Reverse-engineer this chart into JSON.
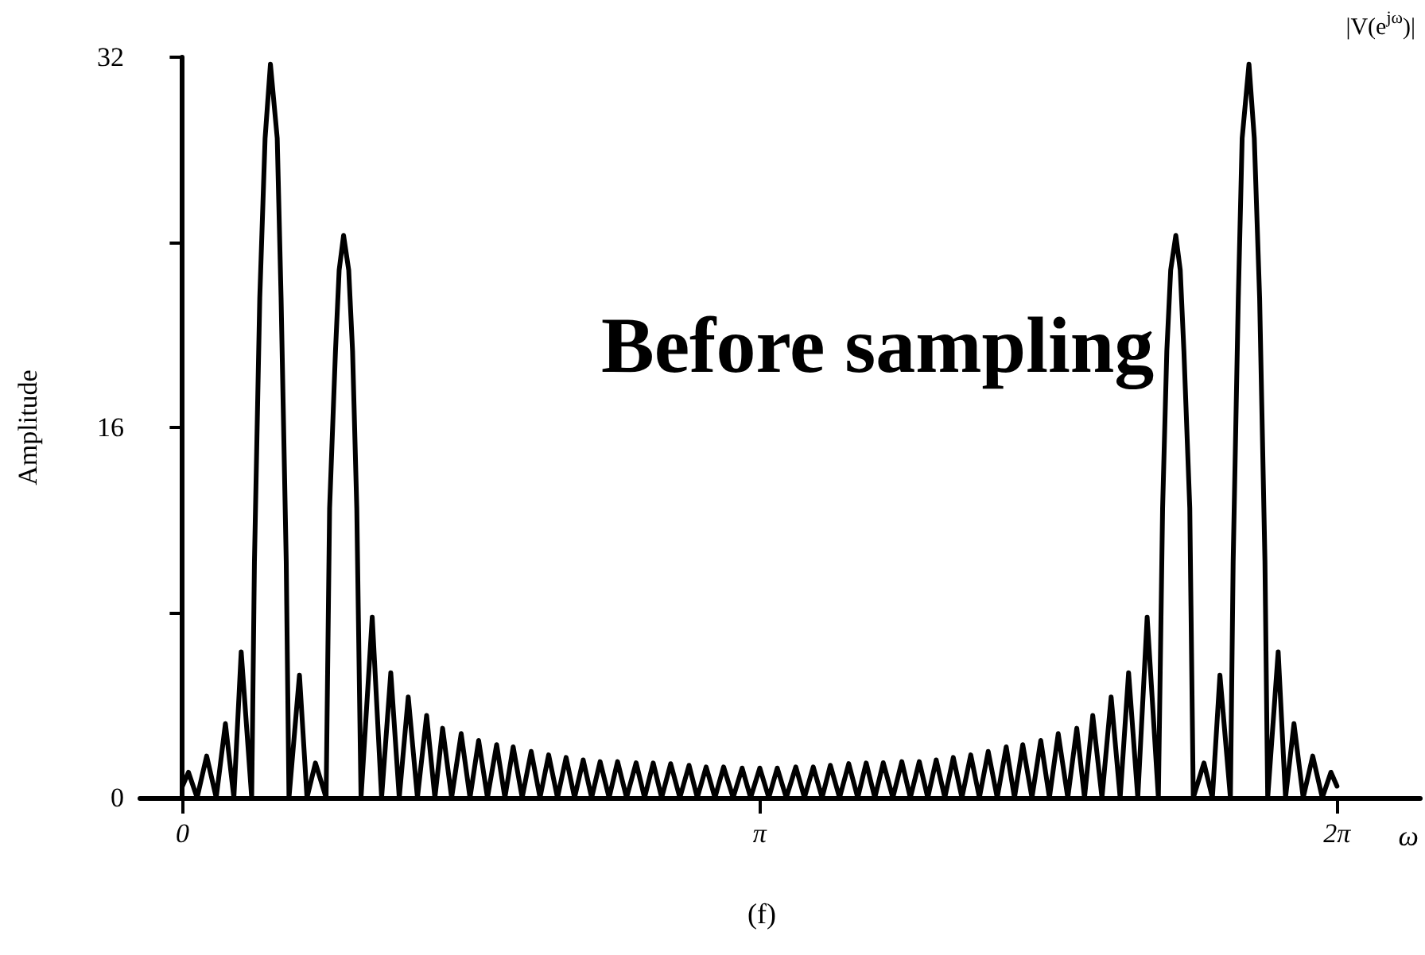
{
  "chart_data": {
    "type": "line",
    "xlabel": "ω",
    "ylabel": "Amplitude",
    "annotations": [
      "|V(e$^{jω}$)|",
      "Before sampling",
      "(f)"
    ],
    "xlim": [
      -0.231,
      6.736
    ],
    "ylim": [
      0,
      32
    ],
    "xticks": [
      0,
      {
        "value": 3.1416,
        "label": "π"
      },
      {
        "value": 6.2832,
        "label": "2π"
      }
    ],
    "yticks": [
      0,
      {
        "value": 8,
        "label": null
      },
      16,
      {
        "value": 24,
        "label": null
      },
      32
    ],
    "grid": false,
    "marker": "none",
    "line_style": "solid",
    "x": [
      0,
      0.033,
      0.08,
      0.132,
      0.184,
      0.234,
      0.28,
      0.32,
      0.377,
      0.392,
      0.421,
      0.45,
      0.479,
      0.516,
      0.537,
      0.565,
      0.58,
      0.637,
      0.678,
      0.724,
      0.782,
      0.801,
      0.833,
      0.853,
      0.877,
      0.905,
      0.926,
      0.949,
      0.972,
      1.033,
      1.084,
      1.134,
      1.18,
      1.229,
      1.279,
      1.329,
      1.374,
      1.416,
      1.465,
      1.517,
      1.565,
      1.612,
      1.66,
      1.71,
      1.755,
      1.8,
      1.849,
      1.898,
      1.946,
      1.993,
      2.041,
      2.088,
      2.134,
      2.181,
      2.227,
      2.273,
      2.322,
      2.368,
      2.417,
      2.469,
      2.515,
      2.562,
      2.608,
      2.657,
      2.707,
      2.757,
      2.802,
      2.85,
      2.898,
      2.945,
      2.997,
      3.046,
      3.092,
      3.142,
      3.191,
      3.237,
      3.286,
      3.338,
      3.385,
      3.433,
      3.481,
      3.526,
      3.576,
      3.626,
      3.675,
      3.721,
      3.768,
      3.814,
      3.866,
      3.915,
      3.961,
      4.01,
      4.056,
      4.102,
      4.149,
      4.195,
      4.242,
      4.29,
      4.337,
      4.385,
      4.434,
      4.483,
      4.528,
      4.573,
      4.623,
      4.671,
      4.718,
      4.766,
      4.818,
      4.867,
      4.909,
      4.954,
      5.004,
      5.054,
      5.103,
      5.149,
      5.199,
      5.25,
      5.311,
      5.334,
      5.357,
      5.378,
      5.406,
      5.43,
      5.45,
      5.482,
      5.501,
      5.559,
      5.605,
      5.646,
      5.703,
      5.718,
      5.746,
      5.767,
      5.804,
      5.833,
      5.862,
      5.891,
      5.906,
      5.963,
      6.003,
      6.049,
      6.099,
      6.151,
      6.203,
      6.25,
      6.283
    ],
    "series": [
      {
        "color": "#000000",
        "values": [
          0.5,
          1.1,
          0,
          1.8,
          0,
          3.2,
          0,
          6.3,
          0,
          10.2,
          21.6,
          28.5,
          31.7,
          28.5,
          21.6,
          10.2,
          0,
          5.3,
          0,
          1.5,
          0,
          12.5,
          19.3,
          22.8,
          24.3,
          22.8,
          19.3,
          12.5,
          0,
          7.8,
          0,
          5.4,
          0,
          4.35,
          0,
          3.55,
          0,
          3.0,
          0,
          2.77,
          0,
          2.47,
          0,
          2.29,
          0,
          2.2,
          0,
          2.0,
          0,
          1.85,
          0,
          1.74,
          0,
          1.63,
          0,
          1.56,
          0,
          1.56,
          0,
          1.51,
          0,
          1.5,
          0,
          1.47,
          0,
          1.4,
          0,
          1.33,
          0,
          1.33,
          0,
          1.28,
          0,
          1.28,
          0,
          1.28,
          0,
          1.33,
          0,
          1.33,
          0,
          1.4,
          0,
          1.47,
          0,
          1.5,
          0,
          1.51,
          0,
          1.56,
          0,
          1.56,
          0,
          1.63,
          0,
          1.74,
          0,
          1.85,
          0,
          2.0,
          0,
          2.2,
          0,
          2.29,
          0,
          2.47,
          0,
          2.77,
          0,
          3.0,
          0,
          3.55,
          0,
          4.35,
          0,
          5.4,
          0,
          7.8,
          0,
          12.5,
          19.3,
          22.8,
          24.3,
          22.8,
          19.3,
          12.5,
          0,
          1.5,
          0,
          5.3,
          0,
          10.2,
          21.6,
          28.5,
          31.7,
          28.5,
          21.6,
          10.2,
          0,
          6.3,
          0,
          3.2,
          0,
          1.8,
          0,
          1.1,
          0.5
        ]
      }
    ]
  }
}
